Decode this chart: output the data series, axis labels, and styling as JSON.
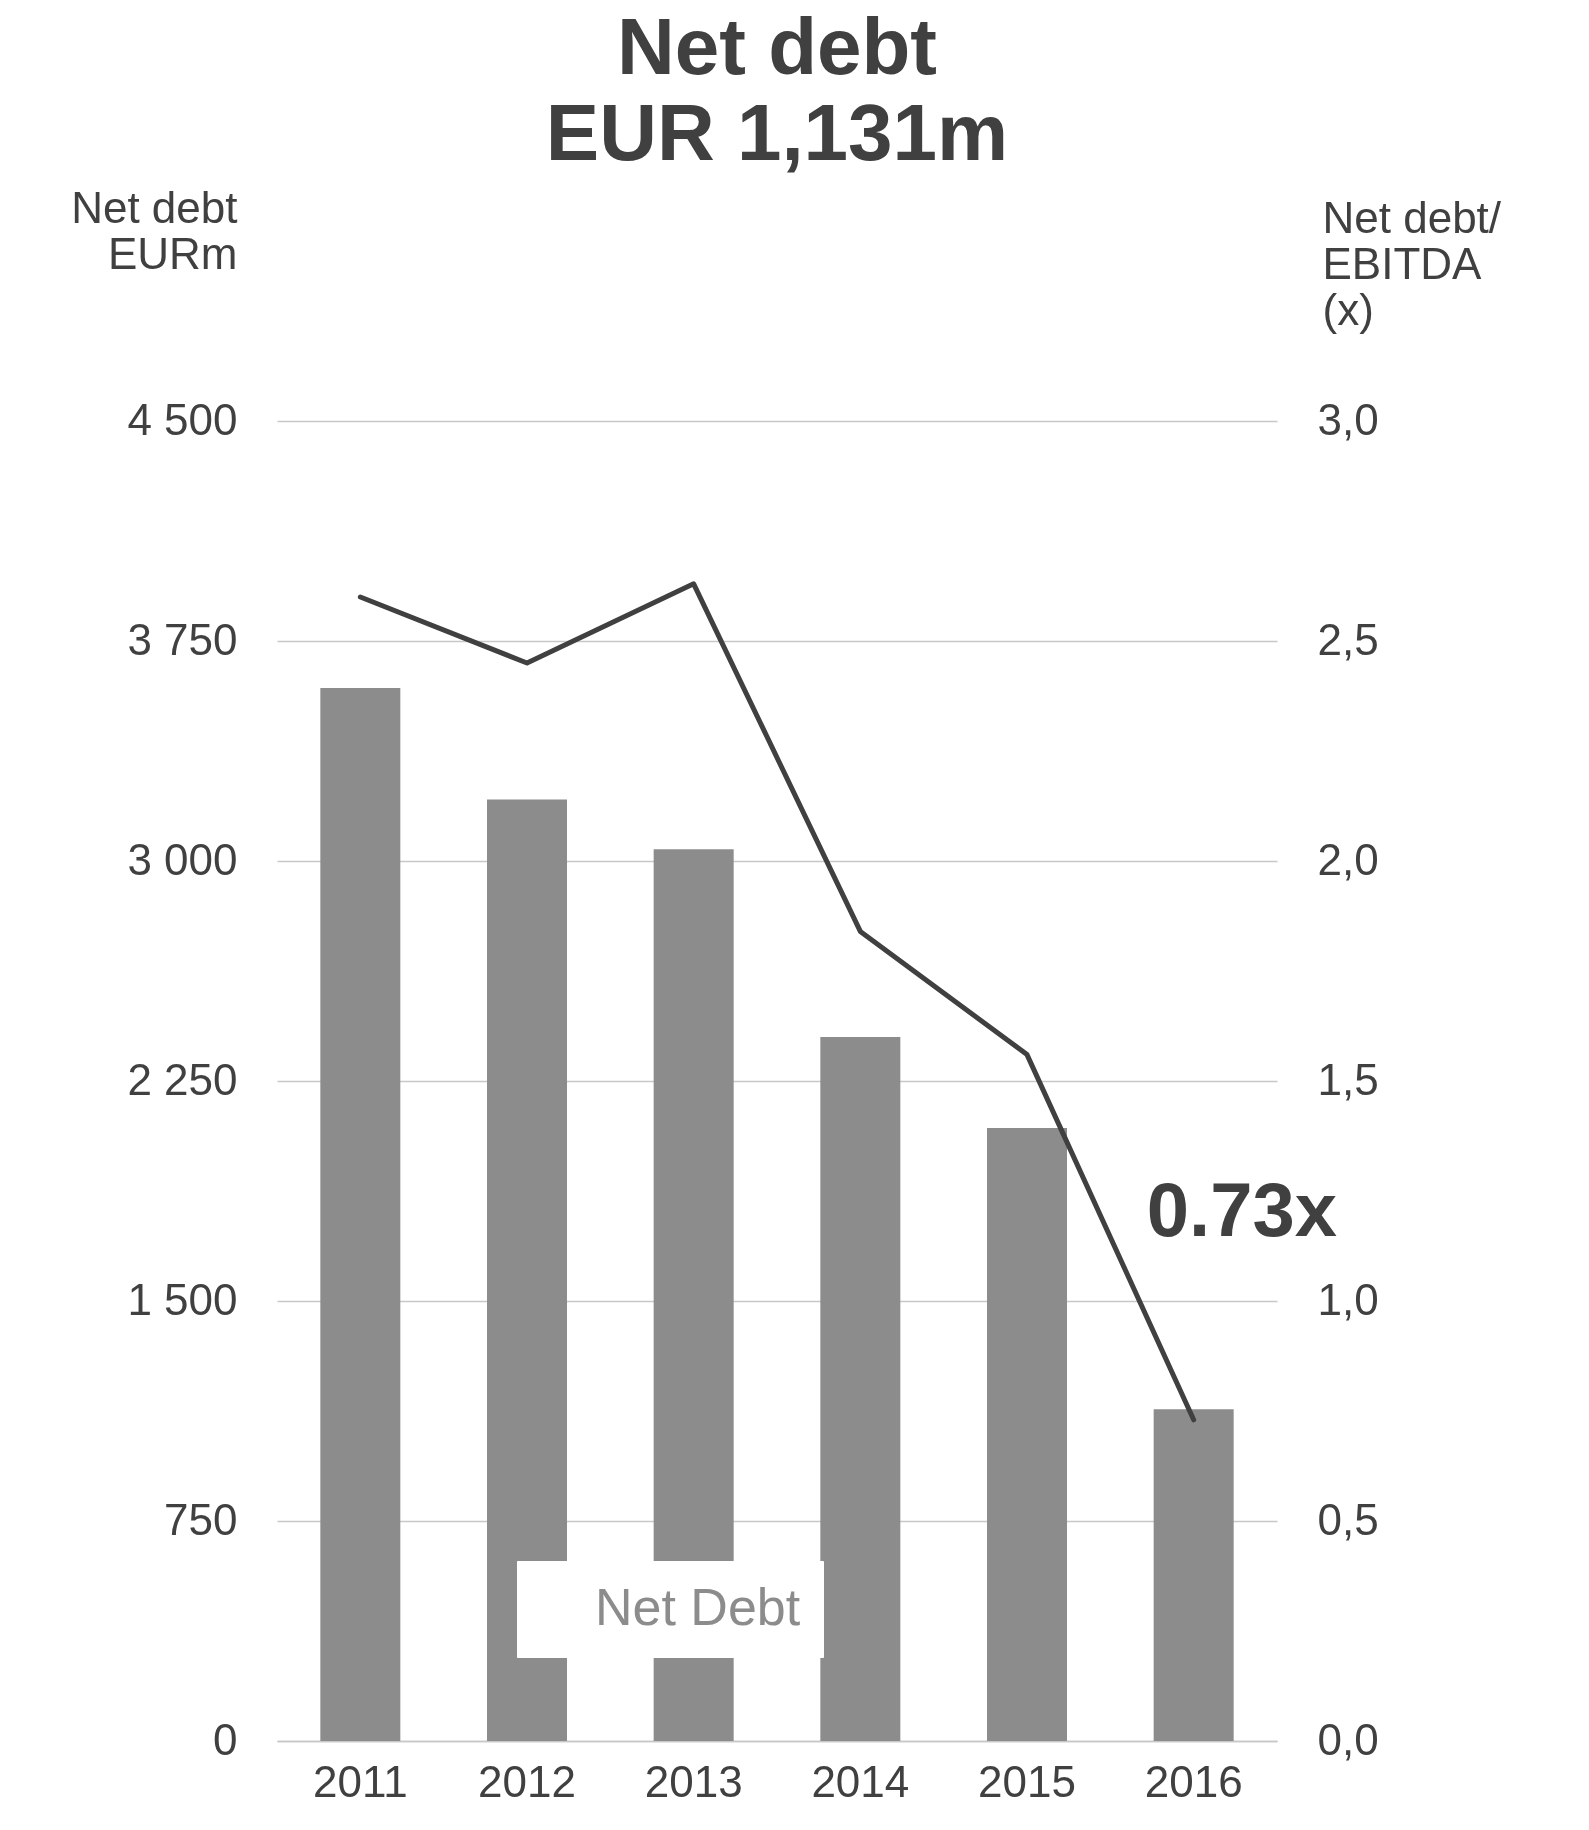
{
  "chart_data": {
    "type": "bar",
    "title": "Net debt",
    "subtitle": "EUR 1,131m",
    "ylabel": "Net debt\nEURm",
    "y2label": "Net debt/\nEBITDA\n(x)",
    "categories": [
      "2011",
      "2012",
      "2013",
      "2014",
      "2015",
      "2016"
    ],
    "series": [
      {
        "name": "Net Debt",
        "color": "#8c8c8c",
        "values": [
          3590,
          3210,
          3040,
          2400,
          2090,
          1131
        ]
      },
      {
        "type": "line",
        "axis": "y2",
        "color": "#404040",
        "values": [
          2.6,
          2.45,
          2.63,
          1.84,
          1.56,
          0.73
        ]
      }
    ],
    "ylim": [
      0,
      4500
    ],
    "yticks": [
      0,
      750,
      {
        "value": 1500,
        "label": "1 500"
      },
      {
        "value": 2250,
        "label": "2 250"
      },
      {
        "value": 3000,
        "label": "3 000"
      },
      {
        "value": 3750,
        "label": "3 750"
      },
      {
        "value": 4500,
        "label": "4 500"
      }
    ],
    "y2lim": [
      0,
      3
    ],
    "y2ticks": [
      {
        "value": 0,
        "label": "0,0"
      },
      {
        "value": 0.5,
        "label": "0,5"
      },
      {
        "value": 1,
        "label": "1,0"
      },
      {
        "value": 1.5,
        "label": "1,5"
      },
      {
        "value": 2,
        "label": "2,0"
      },
      {
        "value": 2.5,
        "label": "2,5"
      },
      {
        "value": 3,
        "label": "3,0"
      }
    ],
    "annotations": [
      "0.73x"
    ],
    "grid": "y",
    "legend": "bottom",
    "line_style": "solid"
  }
}
